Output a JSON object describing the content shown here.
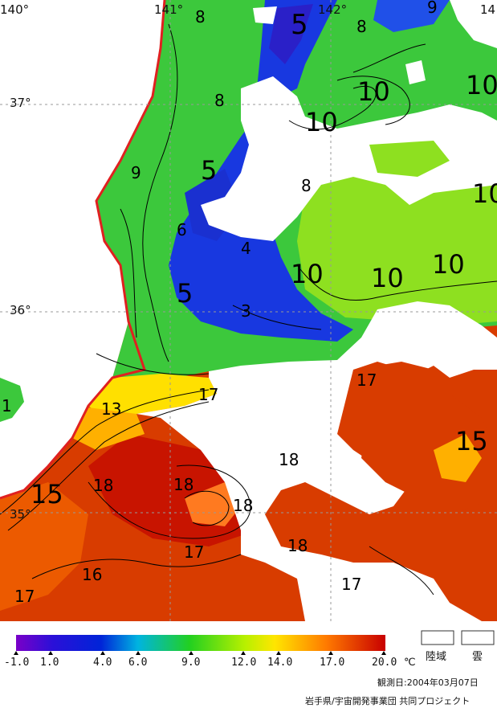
{
  "map": {
    "longitudes": [
      {
        "label": "140°"
      },
      {
        "label": "141°"
      },
      {
        "label": "142°"
      },
      {
        "label": "14"
      }
    ],
    "latitudes": [
      {
        "label": "37°"
      },
      {
        "label": "36°"
      },
      {
        "label": "35°"
      }
    ],
    "contour_labels": [
      {
        "text": "8"
      },
      {
        "text": "5"
      },
      {
        "text": "8"
      },
      {
        "text": "9"
      },
      {
        "text": "8"
      },
      {
        "text": "10"
      },
      {
        "text": "10"
      },
      {
        "text": "10"
      },
      {
        "text": "9"
      },
      {
        "text": "5"
      },
      {
        "text": "8"
      },
      {
        "text": "10"
      },
      {
        "text": "6"
      },
      {
        "text": "4"
      },
      {
        "text": "10"
      },
      {
        "text": "10"
      },
      {
        "text": "10"
      },
      {
        "text": "5"
      },
      {
        "text": "3"
      },
      {
        "text": "17"
      },
      {
        "text": "17"
      },
      {
        "text": "13"
      },
      {
        "text": "15"
      },
      {
        "text": "18"
      },
      {
        "text": "18"
      },
      {
        "text": "18"
      },
      {
        "text": "18"
      },
      {
        "text": "15"
      },
      {
        "text": "18"
      },
      {
        "text": "17"
      },
      {
        "text": "16"
      },
      {
        "text": "17"
      },
      {
        "text": "17"
      },
      {
        "text": "1"
      }
    ]
  },
  "legend": {
    "ticks": [
      "-1.0",
      "1.0",
      "4.0",
      "6.0",
      "9.0",
      "12.0",
      "14.0",
      "17.0",
      "20.0"
    ],
    "unit": "℃",
    "land_label": "陸域",
    "cloud_label": "雲",
    "colors": {
      "violet": "#7a00c8",
      "blue": "#0024d8",
      "cyan": "#00b4e0",
      "green": "#22d020",
      "yellowgreen": "#b8f000",
      "yellow": "#ffe600",
      "orange": "#ff7a00",
      "red": "#c80000"
    }
  },
  "footer": {
    "observation_date": "観測日:2004年03月07日",
    "credit": "岩手県/宇宙開発事業団 共同プロジェクト"
  }
}
